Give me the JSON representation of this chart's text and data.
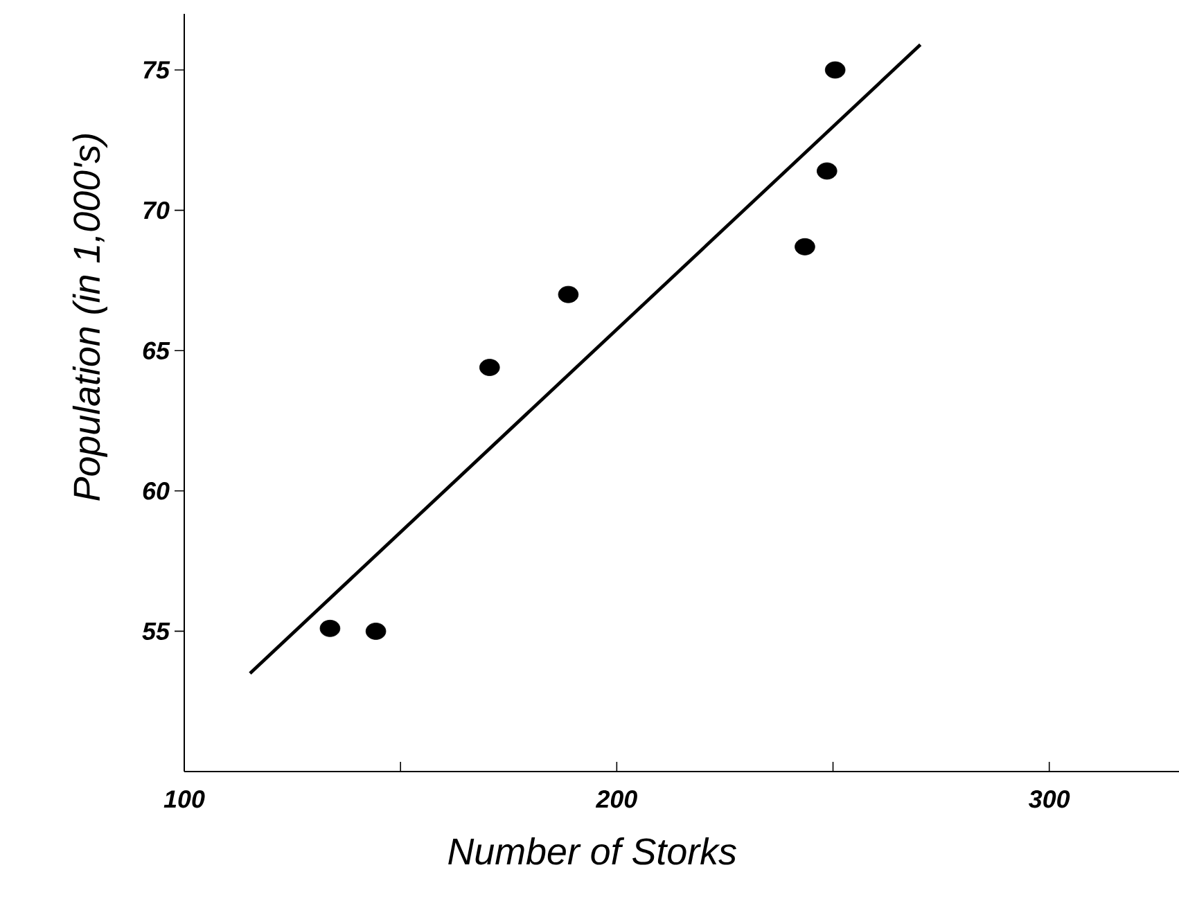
{
  "chart_data": {
    "type": "scatter",
    "xlabel": "Number of Storks",
    "ylabel": "Population (in 1,000's)",
    "xlim": [
      100,
      330
    ],
    "ylim": [
      50,
      77
    ],
    "xticks": [
      100,
      {
        "value": 150,
        "label": null
      },
      200,
      {
        "value": 250,
        "label": null
      },
      300
    ],
    "yticks": [
      55,
      60,
      65,
      70,
      75
    ],
    "marker": "circle",
    "grid": false,
    "series": [
      {
        "color": "#000000",
        "x": [
          133.7,
          144.3,
          170.6,
          188.8,
          243.5,
          248.6,
          250.5
        ],
        "values": [
          55.1,
          55.0,
          64.4,
          67.0,
          68.7,
          71.4,
          75.0
        ]
      },
      {
        "type": "line",
        "color": "#000000",
        "marker": "none",
        "x": [
          115.2,
          270.2
        ],
        "values": [
          53.5,
          75.9
        ]
      }
    ]
  }
}
